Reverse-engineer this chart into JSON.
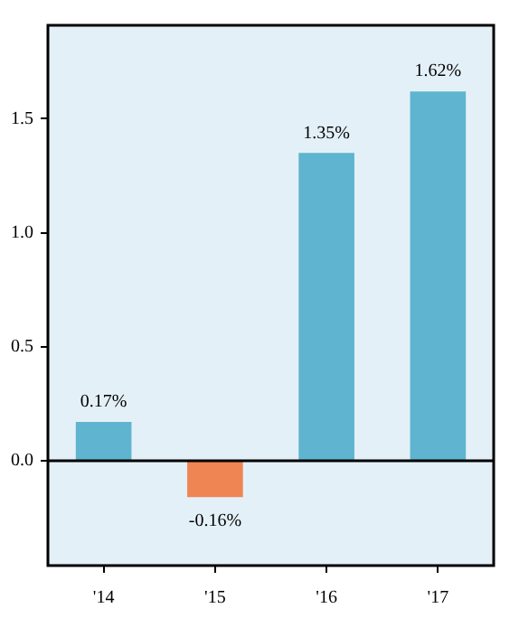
{
  "chart_data": {
    "type": "bar",
    "categories": [
      "'14",
      "'15",
      "'16",
      "'17"
    ],
    "values": [
      0.17,
      -0.16,
      1.35,
      1.62
    ],
    "colors": [
      "#5fb4cf",
      "#ee8553",
      "#5fb4cf",
      "#5fb4cf"
    ],
    "value_labels": [
      "0.17%",
      "-0.16%",
      "1.35%",
      "1.62%"
    ],
    "ylim": [
      -0.46,
      1.91
    ],
    "yticks": [
      {
        "value": 0,
        "label": "0.0"
      },
      {
        "value": 0.5,
        "label": "0.5"
      },
      {
        "value": 1,
        "label": "1.0"
      },
      {
        "value": 1.5,
        "label": "1.5"
      }
    ],
    "ref_lines": [
      {
        "axis": "y",
        "value": 0,
        "color": "#000000"
      }
    ],
    "grid": false,
    "legend": false
  }
}
